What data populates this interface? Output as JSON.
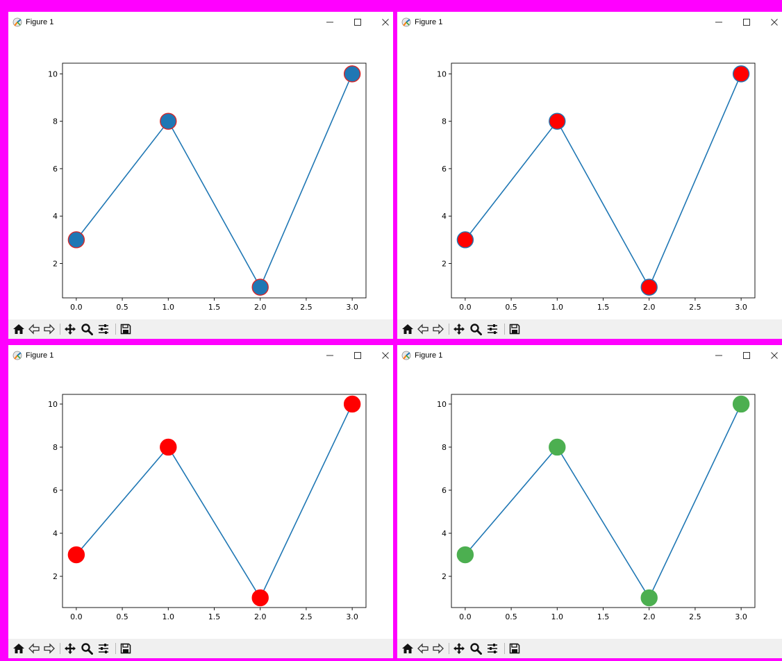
{
  "windows": [
    {
      "title": "Figure 1",
      "marker_face": "#1f77b4",
      "marker_edge": "#d62728"
    },
    {
      "title": "Figure 1",
      "marker_face": "#ff0000",
      "marker_edge": "#1f77b4"
    },
    {
      "title": "Figure 1",
      "marker_face": "#ff0000",
      "marker_edge": "#ff0000"
    },
    {
      "title": "Figure 1",
      "marker_face": "#4caf50",
      "marker_edge": "#4caf50"
    }
  ],
  "toolbar": {
    "icons": [
      "home-icon",
      "back-arrow-icon",
      "forward-arrow-icon",
      "pan-icon",
      "zoom-icon",
      "configure-subplots-icon",
      "save-icon"
    ]
  },
  "colors": {
    "line": "#1f77b4",
    "border": "#ff00ff",
    "toolbar_bg": "#f0f0f0"
  },
  "chart_data": [
    {
      "type": "line",
      "x": [
        0,
        1,
        2,
        3
      ],
      "y": [
        3,
        8,
        1,
        10
      ],
      "xlim": [
        -0.15,
        3.15
      ],
      "ylim": [
        0.55,
        10.45
      ],
      "xticks": [
        "0.0",
        "0.5",
        "1.0",
        "1.5",
        "2.0",
        "2.5",
        "3.0"
      ],
      "yticks": [
        "2",
        "4",
        "6",
        "8",
        "10"
      ]
    },
    {
      "type": "line",
      "x": [
        0,
        1,
        2,
        3
      ],
      "y": [
        3,
        8,
        1,
        10
      ],
      "xlim": [
        -0.15,
        3.15
      ],
      "ylim": [
        0.55,
        10.45
      ],
      "xticks": [
        "0.0",
        "0.5",
        "1.0",
        "1.5",
        "2.0",
        "2.5",
        "3.0"
      ],
      "yticks": [
        "2",
        "4",
        "6",
        "8",
        "10"
      ]
    },
    {
      "type": "line",
      "x": [
        0,
        1,
        2,
        3
      ],
      "y": [
        3,
        8,
        1,
        10
      ],
      "xlim": [
        -0.15,
        3.15
      ],
      "ylim": [
        0.55,
        10.45
      ],
      "xticks": [
        "0.0",
        "0.5",
        "1.0",
        "1.5",
        "2.0",
        "2.5",
        "3.0"
      ],
      "yticks": [
        "2",
        "4",
        "6",
        "8",
        "10"
      ]
    },
    {
      "type": "line",
      "x": [
        0,
        1,
        2,
        3
      ],
      "y": [
        3,
        8,
        1,
        10
      ],
      "xlim": [
        -0.15,
        3.15
      ],
      "ylim": [
        0.55,
        10.45
      ],
      "xticks": [
        "0.0",
        "0.5",
        "1.0",
        "1.5",
        "2.0",
        "2.5",
        "3.0"
      ],
      "yticks": [
        "2",
        "4",
        "6",
        "8",
        "10"
      ]
    }
  ]
}
